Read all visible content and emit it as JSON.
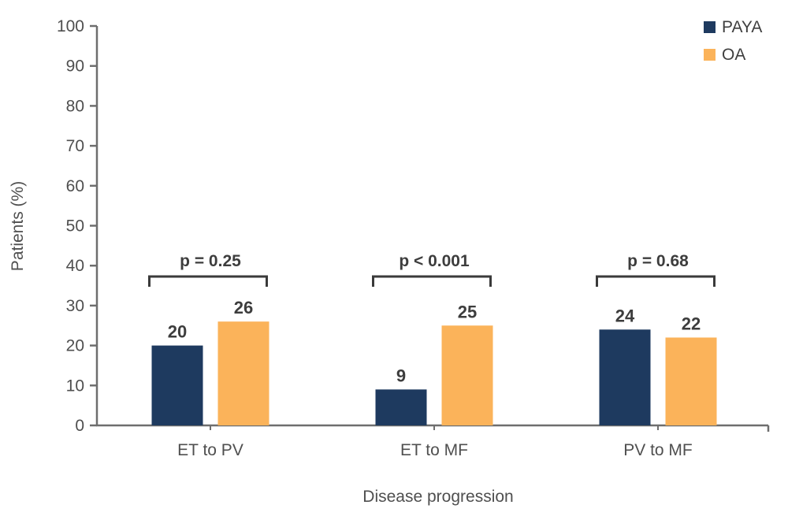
{
  "chart_data": {
    "type": "bar",
    "title": "",
    "categories": [
      "ET to PV",
      "ET to MF",
      "PV to MF"
    ],
    "series": [
      {
        "name": "PAYA",
        "color": "#1e3a5f",
        "values": [
          20,
          9,
          24
        ]
      },
      {
        "name": "OA",
        "color": "#fbb35a",
        "values": [
          26,
          25,
          22
        ]
      }
    ],
    "annotations": [
      {
        "category": "ET to PV",
        "label": "p = 0.25"
      },
      {
        "category": "ET to MF",
        "label": "p < 0.001"
      },
      {
        "category": "PV to MF",
        "label": "p = 0.68"
      }
    ],
    "xlabel": "Disease progression",
    "ylabel": "Patients (%)",
    "ylim": [
      0,
      100
    ],
    "yticks": [
      0,
      10,
      20,
      30,
      40,
      50,
      60,
      70,
      80,
      90,
      100
    ],
    "grid": false,
    "value_labels_shown": true,
    "legend_position": "top-right"
  },
  "colors": {
    "axis": "#6e6e6e",
    "tick_label": "#4f4f4f",
    "value_label": "#3d3d3d",
    "bracket": "#3a3a3a",
    "background": "#ffffff"
  }
}
